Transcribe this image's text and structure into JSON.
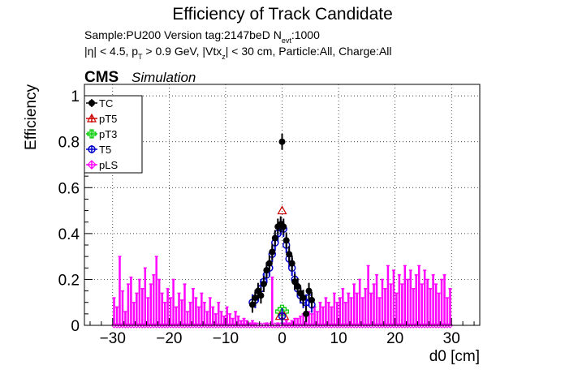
{
  "header": {
    "title": "Efficiency of Track Candidate",
    "line1_a": "Sample:PU200   Version tag:2147beD  N",
    "line1_sub": "evt",
    "line1_b": ":1000",
    "line2": "|η| < 4.5, p_T > 0.9 GeV, |Vtx_z| < 30 cm, Particle:All, Charge:All",
    "line2_parts": [
      "|η| < 4.5, p",
      "T",
      " > 0.9 GeV, |Vtx",
      "z",
      "| < 30 cm, Particle:All, Charge:All"
    ]
  },
  "cms_label": {
    "bold": "CMS",
    "italic": "Simulation"
  },
  "chart_data": {
    "type": "scatter",
    "xlabel": "d0 [cm]",
    "ylabel": "Efficiency",
    "xlim": [
      -35,
      35
    ],
    "ylim": [
      0,
      1.05
    ],
    "xticks": [
      -30,
      -20,
      -10,
      0,
      10,
      20,
      30
    ],
    "yticks": [
      0,
      0.2,
      0.4,
      0.6,
      0.8,
      1
    ],
    "ytick_labels": [
      "0",
      "0.2",
      "0.4",
      "0.6",
      "0.8",
      "1"
    ],
    "grid": true,
    "legend_position": "top-left",
    "series": [
      {
        "name": "TC",
        "color": "#000000",
        "marker": "filled-circle",
        "points": [
          [
            -5.25,
            0.09
          ],
          [
            -4.75,
            0.12
          ],
          [
            -4.25,
            0.15
          ],
          [
            -3.75,
            0.13
          ],
          [
            -3.25,
            0.18
          ],
          [
            -2.75,
            0.24
          ],
          [
            -2.25,
            0.27
          ],
          [
            -1.75,
            0.32
          ],
          [
            -1.25,
            0.38
          ],
          [
            -0.75,
            0.43
          ],
          [
            -0.25,
            0.44
          ],
          [
            0.0,
            0.8
          ],
          [
            0.25,
            0.43
          ],
          [
            0.75,
            0.37
          ],
          [
            1.25,
            0.31
          ],
          [
            1.75,
            0.27
          ],
          [
            2.25,
            0.19
          ],
          [
            2.75,
            0.17
          ],
          [
            3.25,
            0.14
          ],
          [
            3.75,
            0.12
          ],
          [
            4.25,
            0.05
          ],
          [
            4.75,
            0.15
          ],
          [
            5.25,
            0.11
          ]
        ]
      },
      {
        "name": "pT5",
        "color": "#cc0000",
        "marker": "open-triangle",
        "points": [
          [
            0.0,
            0.5
          ],
          [
            -0.4,
            0.04
          ],
          [
            0.4,
            0.04
          ]
        ]
      },
      {
        "name": "pT3",
        "color": "#00cc00",
        "marker": "open-cross",
        "points": [
          [
            0.0,
            0.07
          ],
          [
            -0.4,
            0.06
          ],
          [
            0.4,
            0.06
          ]
        ]
      },
      {
        "name": "T5",
        "color": "#0000cc",
        "marker": "open-circle",
        "points": [
          [
            -5.25,
            0.1
          ],
          [
            -4.75,
            0.11
          ],
          [
            -4.25,
            0.14
          ],
          [
            -3.75,
            0.16
          ],
          [
            -3.25,
            0.19
          ],
          [
            -2.75,
            0.22
          ],
          [
            -2.25,
            0.25
          ],
          [
            -1.75,
            0.31
          ],
          [
            -1.25,
            0.36
          ],
          [
            -0.75,
            0.4
          ],
          [
            -0.25,
            0.43
          ],
          [
            0.25,
            0.42
          ],
          [
            0.75,
            0.35
          ],
          [
            1.25,
            0.29
          ],
          [
            1.75,
            0.25
          ],
          [
            2.25,
            0.2
          ],
          [
            2.75,
            0.16
          ],
          [
            3.25,
            0.13
          ],
          [
            3.75,
            0.11
          ],
          [
            4.25,
            0.1
          ],
          [
            4.75,
            0.12
          ],
          [
            5.25,
            0.09
          ],
          [
            0.0,
            0.04
          ]
        ]
      },
      {
        "name": "pLS",
        "color": "#ff00ff",
        "marker": "open-diamond",
        "bar_values": [
          0.12,
          0.08,
          0.3,
          0.15,
          0.06,
          0.18,
          0.21,
          0.1,
          0.14,
          0.2,
          0.16,
          0.25,
          0.12,
          0.18,
          0.22,
          0.3,
          0.2,
          0.14,
          0.1,
          0.16,
          0.12,
          0.2,
          0.08,
          0.14,
          0.11,
          0.18,
          0.06,
          0.1,
          0.16,
          0.12,
          0.08,
          0.14,
          0.1,
          0.06,
          0.12,
          0.08,
          0.05,
          0.1,
          0.06,
          0.04,
          0.08,
          0.05,
          0.03,
          0.06,
          0.04,
          0.02,
          0.03,
          0.02,
          0.01,
          0.02,
          0.01,
          0.0,
          0.0,
          0.0,
          0.01,
          0.0,
          0.21,
          0.0,
          0.01,
          0.0,
          0.01,
          0.02,
          0.01,
          0.02,
          0.03,
          0.03,
          0.04,
          0.05,
          0.04,
          0.06,
          0.05,
          0.08,
          0.06,
          0.1,
          0.08,
          0.12,
          0.1,
          0.08,
          0.14,
          0.1,
          0.12,
          0.16,
          0.1,
          0.14,
          0.12,
          0.18,
          0.14,
          0.2,
          0.12,
          0.16,
          0.26,
          0.14,
          0.18,
          0.22,
          0.12,
          0.2,
          0.16,
          0.26,
          0.18,
          0.24,
          0.14,
          0.22,
          0.18,
          0.26,
          0.2,
          0.24,
          0.16,
          0.22,
          0.26,
          0.18,
          0.24,
          0.2,
          0.16,
          0.22,
          0.18,
          0.14,
          0.2,
          0.22,
          0.12,
          0.16
        ]
      }
    ]
  }
}
